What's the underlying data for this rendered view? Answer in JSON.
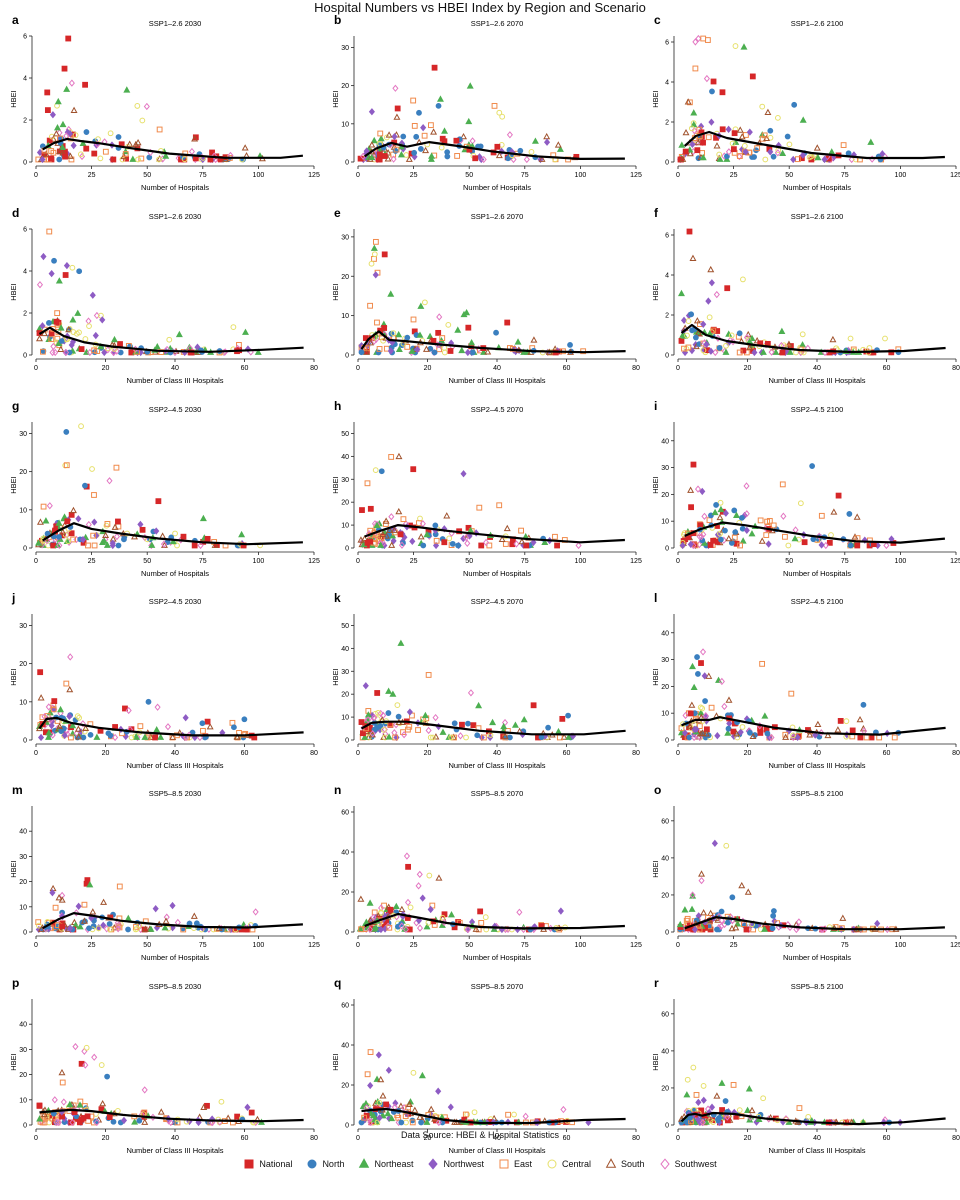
{
  "title": "Hospital Numbers vs HBEI Index by Region and Scenario",
  "source_note": "Data Source: HBEI & Hospital Statistics",
  "legend": [
    {
      "name": "National",
      "color": "#d62728",
      "marker": "square-filled"
    },
    {
      "name": "North",
      "color": "#3a7fbf",
      "marker": "circle-filled"
    },
    {
      "name": "Northeast",
      "color": "#4caf50",
      "marker": "triangle-filled"
    },
    {
      "name": "Northwest",
      "color": "#8e5cc4",
      "marker": "diamond-filled"
    },
    {
      "name": "East",
      "color": "#f08a4b",
      "marker": "square-open"
    },
    {
      "name": "Central",
      "color": "#e6e06a",
      "marker": "circle-open"
    },
    {
      "name": "South",
      "color": "#a0522d",
      "marker": "triangle-open"
    },
    {
      "name": "Southwest",
      "color": "#e377c2",
      "marker": "diamond-open"
    }
  ],
  "chart_data": [
    {
      "label": "a",
      "type": "scatter",
      "title": "SSP1–2.6 2030",
      "xlabel": "Number of Hospitals",
      "ylabel": "HBEI",
      "xlim": [
        0,
        125
      ],
      "ylim": [
        0,
        6
      ],
      "xticks": [
        0,
        25,
        50,
        75,
        100,
        125
      ],
      "yticks": [
        0,
        2,
        4,
        6
      ],
      "trend": [
        [
          3,
          0.6
        ],
        [
          8,
          0.9
        ],
        [
          14,
          1.1
        ],
        [
          20,
          1.0
        ],
        [
          28,
          0.9
        ],
        [
          40,
          0.7
        ],
        [
          60,
          0.4
        ],
        [
          85,
          0.2
        ],
        [
          110,
          0.2
        ],
        [
          120,
          0.3
        ]
      ]
    },
    {
      "label": "b",
      "type": "scatter",
      "title": "SSP1–2.6 2070",
      "xlabel": "Number of Hospitals",
      "ylabel": "HBEI",
      "xlim": [
        0,
        125
      ],
      "ylim": [
        0,
        33
      ],
      "xticks": [
        0,
        25,
        50,
        75,
        100,
        125
      ],
      "yticks": [
        0,
        10,
        20,
        30
      ],
      "trend": [
        [
          3,
          1.5
        ],
        [
          8,
          3.5
        ],
        [
          15,
          5.0
        ],
        [
          22,
          4.0
        ],
        [
          32,
          5.2
        ],
        [
          45,
          4.2
        ],
        [
          60,
          2.8
        ],
        [
          80,
          1.5
        ],
        [
          100,
          0.8
        ],
        [
          120,
          0.9
        ]
      ]
    },
    {
      "label": "c",
      "type": "scatter",
      "title": "SSP1–2.6 2100",
      "xlabel": "Number of Hospitals",
      "ylabel": "HBEI",
      "xlim": [
        0,
        125
      ],
      "ylim": [
        0,
        6.3
      ],
      "xticks": [
        0,
        25,
        50,
        75,
        100,
        125
      ],
      "yticks": [
        0,
        2,
        4,
        6
      ],
      "trend": [
        [
          3,
          0.8
        ],
        [
          8,
          1.3
        ],
        [
          14,
          1.5
        ],
        [
          22,
          1.2
        ],
        [
          32,
          1.0
        ],
        [
          45,
          0.75
        ],
        [
          60,
          0.45
        ],
        [
          85,
          0.2
        ],
        [
          110,
          0.2
        ],
        [
          120,
          0.25
        ]
      ]
    },
    {
      "label": "d",
      "type": "scatter",
      "title": "SSP1–2.6 2030",
      "xlabel": "Number of Class III Hospitals",
      "ylabel": "HBEI",
      "xlim": [
        0,
        80
      ],
      "ylim": [
        0,
        6
      ],
      "xticks": [
        0,
        20,
        40,
        60,
        80
      ],
      "yticks": [
        0,
        2,
        4,
        6
      ],
      "trend": [
        [
          1,
          1.0
        ],
        [
          4,
          1.3
        ],
        [
          8,
          0.9
        ],
        [
          14,
          0.6
        ],
        [
          22,
          0.4
        ],
        [
          35,
          0.2
        ],
        [
          50,
          0.15
        ],
        [
          65,
          0.25
        ],
        [
          77,
          0.35
        ]
      ]
    },
    {
      "label": "e",
      "type": "scatter",
      "title": "SSP1–2.6 2070",
      "xlabel": "Number of Class III Hospitals",
      "ylabel": "HBEI",
      "xlim": [
        0,
        80
      ],
      "ylim": [
        0,
        32
      ],
      "xticks": [
        0,
        20,
        40,
        60,
        80
      ],
      "yticks": [
        0,
        10,
        20,
        30
      ],
      "trend": [
        [
          1,
          1.5
        ],
        [
          3,
          4.0
        ],
        [
          6,
          6.0
        ],
        [
          9,
          3.8
        ],
        [
          14,
          3.5
        ],
        [
          22,
          2.8
        ],
        [
          35,
          1.8
        ],
        [
          50,
          1.0
        ],
        [
          65,
          0.7
        ],
        [
          77,
          1.0
        ]
      ]
    },
    {
      "label": "f",
      "type": "scatter",
      "title": "SSP1–2.6 2100",
      "xlabel": "Number of Class III Hospitals",
      "ylabel": "HBEI",
      "xlim": [
        0,
        80
      ],
      "ylim": [
        0,
        6.3
      ],
      "xticks": [
        0,
        20,
        40,
        60,
        80
      ],
      "yticks": [
        0,
        2,
        4,
        6
      ],
      "trend": [
        [
          1,
          1.1
        ],
        [
          4,
          1.5
        ],
        [
          8,
          1.0
        ],
        [
          14,
          0.7
        ],
        [
          22,
          0.5
        ],
        [
          35,
          0.25
        ],
        [
          50,
          0.15
        ],
        [
          65,
          0.2
        ],
        [
          77,
          0.35
        ]
      ]
    },
    {
      "label": "g",
      "type": "scatter",
      "title": "SSP2–4.5 2030",
      "xlabel": "Number of Hospitals",
      "ylabel": "HBEI",
      "xlim": [
        0,
        125
      ],
      "ylim": [
        0,
        33
      ],
      "xticks": [
        0,
        25,
        50,
        75,
        100,
        125
      ],
      "yticks": [
        0,
        10,
        20,
        30
      ],
      "trend": [
        [
          3,
          2.0
        ],
        [
          10,
          4.5
        ],
        [
          17,
          6.5
        ],
        [
          25,
          5.0
        ],
        [
          38,
          3.8
        ],
        [
          55,
          2.5
        ],
        [
          75,
          1.5
        ],
        [
          95,
          1.0
        ],
        [
          120,
          1.5
        ]
      ]
    },
    {
      "label": "h",
      "type": "scatter",
      "title": "SSP2–4.5 2070",
      "xlabel": "Number of Hospitals",
      "ylabel": "HBEI",
      "xlim": [
        0,
        125
      ],
      "ylim": [
        0,
        55
      ],
      "xticks": [
        0,
        25,
        50,
        75,
        100,
        125
      ],
      "yticks": [
        0,
        10,
        20,
        30,
        40,
        50
      ],
      "trend": [
        [
          3,
          5.0
        ],
        [
          10,
          7.5
        ],
        [
          18,
          10.0
        ],
        [
          28,
          9.0
        ],
        [
          40,
          7.5
        ],
        [
          55,
          6.0
        ],
        [
          75,
          4.0
        ],
        [
          100,
          2.5
        ],
        [
          120,
          3.5
        ]
      ]
    },
    {
      "label": "i",
      "type": "scatter",
      "title": "SSP2–4.5 2100",
      "xlabel": "Number of Hospitals",
      "ylabel": "HBEI",
      "xlim": [
        0,
        125
      ],
      "ylim": [
        0,
        47
      ],
      "xticks": [
        0,
        25,
        50,
        75,
        100,
        125
      ],
      "yticks": [
        0,
        10,
        20,
        30,
        40
      ],
      "trend": [
        [
          3,
          4.5
        ],
        [
          10,
          7.0
        ],
        [
          20,
          9.5
        ],
        [
          30,
          8.5
        ],
        [
          45,
          6.5
        ],
        [
          60,
          4.5
        ],
        [
          80,
          2.5
        ],
        [
          100,
          2.0
        ],
        [
          120,
          3.5
        ]
      ]
    },
    {
      "label": "j",
      "type": "scatter",
      "title": "SSP2–4.5 2030",
      "xlabel": "Number of Class III Hospitals",
      "ylabel": "HBEI",
      "xlim": [
        0,
        80
      ],
      "ylim": [
        0,
        33
      ],
      "xticks": [
        0,
        20,
        40,
        60,
        80
      ],
      "yticks": [
        0,
        10,
        20,
        30
      ],
      "trend": [
        [
          1,
          3.0
        ],
        [
          3,
          5.5
        ],
        [
          6,
          5.8
        ],
        [
          10,
          4.5
        ],
        [
          18,
          3.2
        ],
        [
          30,
          2.0
        ],
        [
          45,
          1.2
        ],
        [
          60,
          1.2
        ],
        [
          77,
          2.0
        ]
      ]
    },
    {
      "label": "k",
      "type": "scatter",
      "title": "SSP2–4.5 2070",
      "xlabel": "Number of Class III Hospitals",
      "ylabel": "HBEI",
      "xlim": [
        0,
        80
      ],
      "ylim": [
        0,
        55
      ],
      "xticks": [
        0,
        20,
        40,
        60,
        80
      ],
      "yticks": [
        0,
        10,
        20,
        30,
        40,
        50
      ],
      "trend": [
        [
          1,
          5.0
        ],
        [
          4,
          7.5
        ],
        [
          8,
          8.0
        ],
        [
          14,
          8.0
        ],
        [
          22,
          6.5
        ],
        [
          35,
          4.0
        ],
        [
          50,
          2.5
        ],
        [
          65,
          2.5
        ],
        [
          77,
          4.0
        ]
      ]
    },
    {
      "label": "l",
      "type": "scatter",
      "title": "SSP2–4.5 2100",
      "xlabel": "Number of Class III Hospitals",
      "ylabel": "HBEI",
      "xlim": [
        0,
        80
      ],
      "ylim": [
        0,
        47
      ],
      "xticks": [
        0,
        20,
        40,
        60,
        80
      ],
      "yticks": [
        0,
        10,
        20,
        30,
        40
      ],
      "trend": [
        [
          1,
          5.5
        ],
        [
          5,
          7.5
        ],
        [
          9,
          7.5
        ],
        [
          12,
          8.5
        ],
        [
          18,
          7.0
        ],
        [
          28,
          4.5
        ],
        [
          42,
          2.5
        ],
        [
          58,
          2.0
        ],
        [
          77,
          4.5
        ]
      ]
    },
    {
      "label": "m",
      "type": "scatter",
      "title": "SSP5–8.5 2030",
      "xlabel": "Number of Hospitals",
      "ylabel": "HBEI",
      "xlim": [
        0,
        125
      ],
      "ylim": [
        0,
        50
      ],
      "xticks": [
        0,
        25,
        50,
        75,
        100,
        125
      ],
      "yticks": [
        0,
        10,
        20,
        30,
        40
      ],
      "trend": [
        [
          3,
          1.5
        ],
        [
          10,
          5.0
        ],
        [
          17,
          7.5
        ],
        [
          25,
          6.5
        ],
        [
          38,
          4.5
        ],
        [
          55,
          3.0
        ],
        [
          75,
          2.0
        ],
        [
          95,
          1.8
        ],
        [
          120,
          3.0
        ]
      ]
    },
    {
      "label": "n",
      "type": "scatter",
      "title": "SSP5–8.5 2070",
      "xlabel": "Number of Hospitals",
      "ylabel": "HBEI",
      "xlim": [
        0,
        125
      ],
      "ylim": [
        0,
        63
      ],
      "xticks": [
        0,
        25,
        50,
        75,
        100,
        125
      ],
      "yticks": [
        0,
        20,
        40,
        60
      ],
      "trend": [
        [
          3,
          3.0
        ],
        [
          10,
          6.0
        ],
        [
          18,
          9.0
        ],
        [
          28,
          7.0
        ],
        [
          40,
          4.5
        ],
        [
          55,
          2.5
        ],
        [
          75,
          1.8
        ],
        [
          100,
          2.0
        ],
        [
          120,
          3.0
        ]
      ]
    },
    {
      "label": "o",
      "type": "scatter",
      "title": "SSP5–8.5 2100",
      "xlabel": "Number of Hospitals",
      "ylabel": "HBEI",
      "xlim": [
        0,
        125
      ],
      "ylim": [
        0,
        68
      ],
      "xticks": [
        0,
        25,
        50,
        75,
        100,
        125
      ],
      "yticks": [
        0,
        20,
        40,
        60
      ],
      "trend": [
        [
          3,
          2.0
        ],
        [
          10,
          5.0
        ],
        [
          17,
          8.0
        ],
        [
          25,
          7.0
        ],
        [
          38,
          4.5
        ],
        [
          55,
          2.5
        ],
        [
          75,
          1.5
        ],
        [
          100,
          1.5
        ],
        [
          120,
          2.5
        ]
      ]
    },
    {
      "label": "p",
      "type": "scatter",
      "title": "SSP5–8.5 2030",
      "xlabel": "Number of Class III Hospitals",
      "ylabel": "HBEI",
      "xlim": [
        0,
        80
      ],
      "ylim": [
        0,
        50
      ],
      "xticks": [
        0,
        20,
        40,
        60,
        80
      ],
      "yticks": [
        0,
        10,
        20,
        30,
        40
      ],
      "trend": [
        [
          1,
          5.0
        ],
        [
          5,
          5.5
        ],
        [
          10,
          6.0
        ],
        [
          16,
          5.5
        ],
        [
          25,
          4.0
        ],
        [
          38,
          2.5
        ],
        [
          50,
          1.8
        ],
        [
          65,
          1.5
        ],
        [
          77,
          2.0
        ]
      ]
    },
    {
      "label": "q",
      "type": "scatter",
      "title": "SSP5–8.5 2070",
      "xlabel": "Number of Class III Hospitals",
      "ylabel": "HBEI",
      "xlim": [
        0,
        80
      ],
      "ylim": [
        0,
        63
      ],
      "xticks": [
        0,
        20,
        40,
        60,
        80
      ],
      "yticks": [
        0,
        20,
        40,
        60
      ],
      "trend": [
        [
          1,
          7.0
        ],
        [
          4,
          7.5
        ],
        [
          8,
          8.0
        ],
        [
          12,
          7.0
        ],
        [
          18,
          5.0
        ],
        [
          25,
          2.5
        ],
        [
          35,
          1.0
        ],
        [
          50,
          1.0
        ],
        [
          65,
          2.5
        ],
        [
          77,
          3.0
        ]
      ]
    },
    {
      "label": "r",
      "type": "scatter",
      "title": "SSP5–8.5 2100",
      "xlabel": "Number of Class III Hospitals",
      "ylabel": "HBEI",
      "xlim": [
        0,
        80
      ],
      "ylim": [
        0,
        68
      ],
      "xticks": [
        0,
        20,
        40,
        60,
        80
      ],
      "yticks": [
        0,
        20,
        40,
        60
      ],
      "trend": [
        [
          1,
          2.0
        ],
        [
          3,
          5.5
        ],
        [
          5,
          6.0
        ],
        [
          7,
          5.0
        ],
        [
          10,
          6.5
        ],
        [
          16,
          6.0
        ],
        [
          25,
          3.5
        ],
        [
          38,
          1.5
        ],
        [
          52,
          0.5
        ],
        [
          65,
          1.5
        ],
        [
          77,
          3.5
        ]
      ]
    }
  ]
}
